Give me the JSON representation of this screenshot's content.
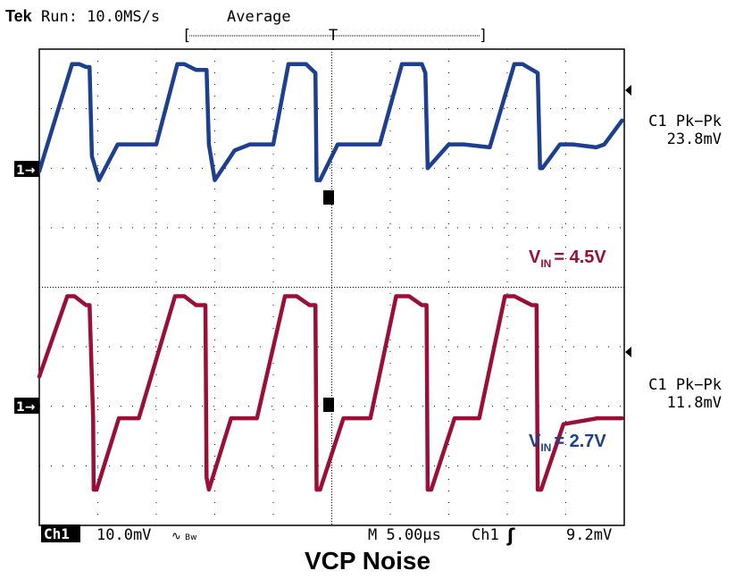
{
  "header": {
    "brand": "Tek",
    "status": "Run: 10.0MS/s",
    "mode": "Average",
    "trigger_bracket_left": "[",
    "trigger_marker": "T",
    "trigger_bracket_right": "]"
  },
  "footer": {
    "channel_label": "Ch1",
    "volts_per_div": "10.0mV",
    "bw_symbol": "∿",
    "bw_label": "Bw",
    "timebase": "M 5.00µs",
    "trigger_source": "Ch1",
    "trigger_slope": "ʃ",
    "trigger_level": "9.2mV"
  },
  "caption": "VCP Noise",
  "colors": {
    "trace_top": "#9b0e36",
    "trace_bottom": "#1d3f8f",
    "graticule": "#000000",
    "background": "#ffffff"
  },
  "chart_data": [
    {
      "type": "line",
      "name_label": "V",
      "name_sub": "IN",
      "name_value": "= 4.5V",
      "measurement_title": "C1 Pk−Pk",
      "measurement_value": "23.8mV",
      "marker_label": "1→",
      "color": "#9b0e36",
      "x_unit": "µs",
      "xlim": [
        0,
        50
      ],
      "y_unit": "mV (screen divisions)",
      "ylim": [
        -4,
        4
      ],
      "x": [
        0,
        2.4,
        3.0,
        4.0,
        4.3,
        4.6,
        4.65,
        4.9,
        6.8,
        8.5,
        11.6,
        12.4,
        13.4,
        14.2,
        14.3,
        14.5,
        16.4,
        18.6,
        21.0,
        22.0,
        23.1,
        23.6,
        23.7,
        24.0,
        26.0,
        28.3,
        30.5,
        31.6,
        32.7,
        33.1,
        33.2,
        33.5,
        35.5,
        37.6,
        39.8,
        40.6,
        42.1,
        42.5,
        42.6,
        42.9,
        44.8,
        47.7,
        49.8
      ],
      "y": [
        -1.5,
        -0.15,
        -0.15,
        -0.3,
        -0.3,
        -2.2,
        -3.4,
        -3.4,
        -2.2,
        -2.2,
        -0.15,
        -0.15,
        -0.3,
        -0.3,
        -3.2,
        -3.4,
        -2.2,
        -2.2,
        -0.15,
        -0.15,
        -0.3,
        -0.3,
        -3.4,
        -3.4,
        -2.2,
        -2.2,
        -0.15,
        -0.15,
        -0.3,
        -0.3,
        -3.4,
        -3.4,
        -2.2,
        -2.2,
        -0.15,
        -0.15,
        -0.3,
        -0.3,
        -3.4,
        -3.4,
        -2.3,
        -2.2,
        -2.2
      ]
    },
    {
      "type": "line",
      "name_label": "V",
      "name_sub": "IN",
      "name_value": "= 2.7V",
      "measurement_title": "C1 Pk−Pk",
      "measurement_value": "11.8mV",
      "marker_label": "1→",
      "color": "#1d3f8f",
      "x_unit": "µs",
      "xlim": [
        0,
        50
      ],
      "y_unit": "mV (screen divisions)",
      "ylim": [
        -4,
        4
      ],
      "x": [
        0,
        2.8,
        3.4,
        4.0,
        4.3,
        4.5,
        5.1,
        6.7,
        8.0,
        10.0,
        11.8,
        12.4,
        13.4,
        14.3,
        14.5,
        15.0,
        16.7,
        18.0,
        20.0,
        21.3,
        22.8,
        23.6,
        23.7,
        24.0,
        25.5,
        26.9,
        29.1,
        31.0,
        32.7,
        33.0,
        33.2,
        35.0,
        36.3,
        38.5,
        40.6,
        41.3,
        42.6,
        42.8,
        43.0,
        44.5,
        45.6,
        47.6,
        48.3,
        49.8
      ],
      "y": [
        1.95,
        3.75,
        3.75,
        3.7,
        3.7,
        2.2,
        1.8,
        2.4,
        2.4,
        2.4,
        3.75,
        3.75,
        3.65,
        3.65,
        2.4,
        1.8,
        2.3,
        2.4,
        2.4,
        3.75,
        3.75,
        3.6,
        1.8,
        1.8,
        2.4,
        2.4,
        2.4,
        3.75,
        3.75,
        3.6,
        2.0,
        2.4,
        2.4,
        2.35,
        3.75,
        3.75,
        3.6,
        2.0,
        2.0,
        2.4,
        2.4,
        2.35,
        2.4,
        2.8
      ]
    }
  ]
}
